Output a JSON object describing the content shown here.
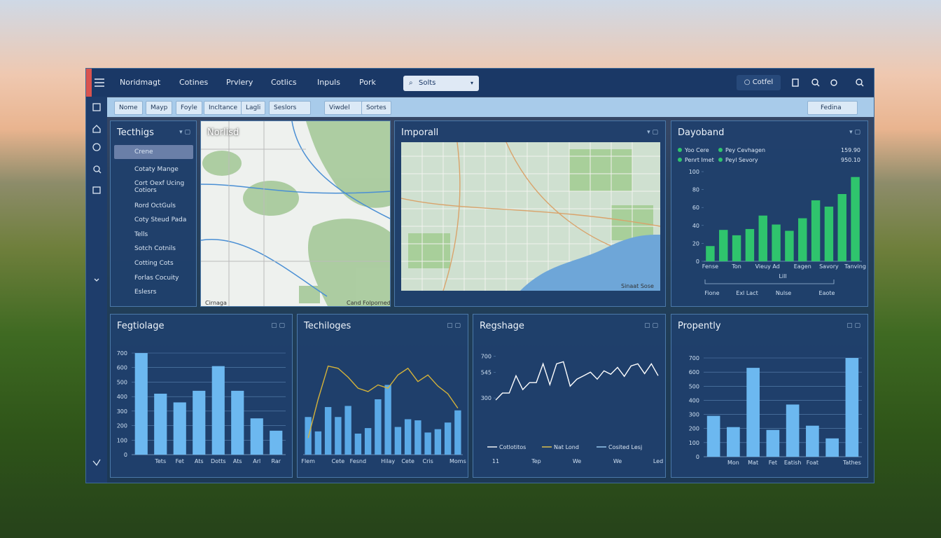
{
  "nav": {
    "items": [
      "Noridmagt",
      "Cotines",
      "Prvlery",
      "Cotlics",
      "Inpuls",
      "Pork"
    ],
    "search": "Solts",
    "button": "Cotfel"
  },
  "toolbar": {
    "buttons": [
      "Nome",
      "Mayp",
      "Foyle",
      "Incltance",
      "Lagli",
      "Seslors",
      "Viwdel",
      "Sortes"
    ],
    "dropdown": "Fedina"
  },
  "list_panel": {
    "title": "Tecthigs",
    "items": [
      "Crene",
      "Cotaty Mange",
      "Cort Oexf Ucing Cotiors",
      "Rord OctGuls",
      "Coty Steud Pada",
      "Tells",
      "Sotch Cotnils",
      "Cotting Cots",
      "Forlas Cocuity",
      "Eslesrs"
    ]
  },
  "maps": [
    {
      "title": "Norlisd",
      "labels": [
        "Cirnaga",
        "Cand Folporned"
      ]
    },
    {
      "title": "Imporall",
      "labels": [
        "Sinaat Sose"
      ]
    }
  ],
  "chart_data": [
    {
      "type": "bar",
      "title": "Dayoband",
      "color": "#2fc46d",
      "legend": [
        "Yoo Cere",
        "Pey Cevhagen",
        "Penrt Imet",
        "Peyl Sevory"
      ],
      "stats": [
        {
          "value": 159.9,
          "label": "159.90"
        },
        {
          "value": 950.1,
          "label": "950.10"
        }
      ],
      "categories": [
        "Fense",
        null,
        "Ton",
        null,
        "Vieuy",
        "Ad",
        null,
        "Eagen",
        null,
        "Savory",
        null,
        "Tanving"
      ],
      "values": [
        17,
        35,
        29,
        36,
        51,
        41,
        34,
        48,
        68,
        61,
        75,
        94
      ],
      "ylim": [
        0,
        100
      ],
      "yticks": [
        0,
        20,
        40,
        60,
        80,
        100
      ],
      "grid": false,
      "x_label": "Lill",
      "footer_labels": [
        "Fione",
        "Exl Lact",
        "Nulse",
        "Eaote"
      ]
    },
    {
      "type": "bar",
      "title": "Fegtiolage",
      "color": "#6cb8f0",
      "categories": [
        null,
        "Tets",
        "Fet",
        "Ats",
        "Dotts",
        "Ats",
        "Arl",
        "Rar"
      ],
      "values": [
        700,
        420,
        360,
        440,
        610,
        440,
        250,
        165
      ],
      "ylim": [
        0,
        700
      ],
      "yticks": [
        0,
        100,
        200,
        300,
        400,
        500,
        600,
        700
      ],
      "grid": true
    },
    {
      "type": "combo",
      "title": "Techiloges",
      "color": "#5aa9e6",
      "line_color": "#d4b23a",
      "categories": [
        "Flem",
        null,
        null,
        "Cete",
        null,
        "Fesnd",
        null,
        null,
        "Hilay",
        null,
        "Cete",
        null,
        "Cris",
        null,
        null,
        "Moms"
      ],
      "values": [
        34,
        21,
        43,
        34,
        44,
        19,
        24,
        50,
        63,
        25,
        32,
        31,
        20,
        23,
        29,
        40
      ],
      "line_values": [
        15,
        50,
        80,
        78,
        70,
        60,
        57,
        63,
        60,
        72,
        78,
        66,
        72,
        62,
        55,
        42
      ],
      "ylim": [
        0,
        100
      ],
      "grid": false
    },
    {
      "type": "line",
      "title": "Regshage",
      "color": "#ffffff",
      "categories": [
        "11",
        null,
        null,
        null,
        null,
        null,
        "Tep",
        null,
        null,
        null,
        null,
        null,
        "We",
        null,
        null,
        null,
        null,
        null,
        "We",
        null,
        null,
        null,
        null,
        null,
        "Led"
      ],
      "values": [
        280,
        347,
        347,
        513,
        380,
        447,
        447,
        627,
        427,
        627,
        647,
        413,
        480,
        513,
        547,
        480,
        560,
        527,
        593,
        507,
        607,
        627,
        533,
        627,
        513
      ],
      "ylim": [
        200,
        750
      ],
      "yticks": [
        300,
        545,
        700
      ],
      "grid": false,
      "legend": [
        {
          "name": "Cotlotitos",
          "color": "#ffffff"
        },
        {
          "name": "Nat Lond",
          "color": "#e8c84a"
        },
        {
          "name": "Cosited Lesj",
          "color": "#9fd0f5"
        }
      ]
    },
    {
      "type": "bar",
      "title": "Propently",
      "color": "#6cb8f0",
      "categories": [
        null,
        "Mon",
        "Mat",
        "Fet",
        "Eatish",
        "Foat",
        null,
        "Tathes"
      ],
      "values": [
        290,
        210,
        630,
        190,
        370,
        220,
        130,
        700
      ],
      "ylim": [
        0,
        700
      ],
      "yticks": [
        0,
        100,
        200,
        300,
        400,
        500,
        600,
        700
      ],
      "grid": true
    }
  ]
}
